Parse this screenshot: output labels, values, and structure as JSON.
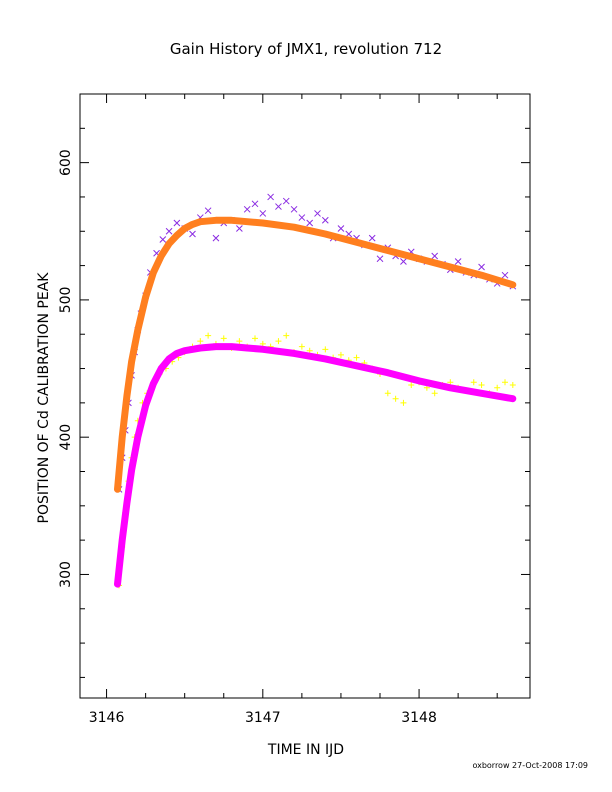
{
  "chart_data": {
    "type": "scatter",
    "title": "Gain History of JMX1, revolution 712",
    "xlabel": "TIME IN IJD",
    "ylabel": "POSITION OF Cd CALIBRATION PEAK",
    "xlim": [
      3145.83,
      3148.71
    ],
    "ylim": [
      210,
      650
    ],
    "x_ticks": [
      3146,
      3147,
      3148
    ],
    "y_ticks": [
      300,
      400,
      500,
      600
    ],
    "x_tick_labels": [
      "3146",
      "3147",
      "3148"
    ],
    "y_tick_labels": [
      "300",
      "400",
      "500",
      "600"
    ],
    "grid": false,
    "legend": "none",
    "series": [
      {
        "marker": "x",
        "color": "#8a2be2",
        "points": [
          [
            3146.08,
            362
          ],
          [
            3146.1,
            385
          ],
          [
            3146.12,
            405
          ],
          [
            3146.14,
            425
          ],
          [
            3146.16,
            445
          ],
          [
            3146.18,
            462
          ],
          [
            3146.2,
            478
          ],
          [
            3146.22,
            490
          ],
          [
            3146.25,
            503
          ],
          [
            3146.28,
            520
          ],
          [
            3146.32,
            534
          ],
          [
            3146.36,
            544
          ],
          [
            3146.4,
            550
          ],
          [
            3146.45,
            556
          ],
          [
            3146.5,
            552
          ],
          [
            3146.55,
            548
          ],
          [
            3146.6,
            560
          ],
          [
            3146.65,
            565
          ],
          [
            3146.7,
            545
          ],
          [
            3146.75,
            556
          ],
          [
            3146.8,
            558
          ],
          [
            3146.85,
            552
          ],
          [
            3146.9,
            566
          ],
          [
            3146.95,
            570
          ],
          [
            3147.0,
            563
          ],
          [
            3147.05,
            575
          ],
          [
            3147.1,
            568
          ],
          [
            3147.15,
            572
          ],
          [
            3147.2,
            566
          ],
          [
            3147.25,
            560
          ],
          [
            3147.3,
            556
          ],
          [
            3147.35,
            563
          ],
          [
            3147.4,
            558
          ],
          [
            3147.45,
            545
          ],
          [
            3147.5,
            552
          ],
          [
            3147.55,
            548
          ],
          [
            3147.6,
            545
          ],
          [
            3147.65,
            540
          ],
          [
            3147.7,
            545
          ],
          [
            3147.75,
            530
          ],
          [
            3147.8,
            538
          ],
          [
            3147.85,
            532
          ],
          [
            3147.9,
            528
          ],
          [
            3147.95,
            535
          ],
          [
            3148.0,
            530
          ],
          [
            3148.05,
            528
          ],
          [
            3148.1,
            532
          ],
          [
            3148.15,
            526
          ],
          [
            3148.2,
            522
          ],
          [
            3148.25,
            528
          ],
          [
            3148.3,
            520
          ],
          [
            3148.35,
            518
          ],
          [
            3148.4,
            524
          ],
          [
            3148.45,
            515
          ],
          [
            3148.5,
            512
          ],
          [
            3148.55,
            518
          ],
          [
            3148.6,
            510
          ]
        ]
      },
      {
        "marker": "+",
        "color": "#ffff00",
        "points": [
          [
            3146.08,
            292
          ],
          [
            3146.1,
            320
          ],
          [
            3146.12,
            345
          ],
          [
            3146.14,
            368
          ],
          [
            3146.16,
            385
          ],
          [
            3146.18,
            400
          ],
          [
            3146.2,
            412
          ],
          [
            3146.23,
            425
          ],
          [
            3146.26,
            432
          ],
          [
            3146.3,
            440
          ],
          [
            3146.34,
            446
          ],
          [
            3146.38,
            450
          ],
          [
            3146.42,
            455
          ],
          [
            3146.46,
            458
          ],
          [
            3146.5,
            462
          ],
          [
            3146.55,
            466
          ],
          [
            3146.6,
            470
          ],
          [
            3146.65,
            474
          ],
          [
            3146.7,
            468
          ],
          [
            3146.75,
            472
          ],
          [
            3146.8,
            465
          ],
          [
            3146.85,
            470
          ],
          [
            3146.9,
            466
          ],
          [
            3146.95,
            472
          ],
          [
            3147.0,
            468
          ],
          [
            3147.05,
            466
          ],
          [
            3147.1,
            470
          ],
          [
            3147.15,
            474
          ],
          [
            3147.2,
            462
          ],
          [
            3147.25,
            466
          ],
          [
            3147.3,
            463
          ],
          [
            3147.35,
            460
          ],
          [
            3147.4,
            464
          ],
          [
            3147.45,
            458
          ],
          [
            3147.5,
            460
          ],
          [
            3147.55,
            456
          ],
          [
            3147.6,
            458
          ],
          [
            3147.65,
            454
          ],
          [
            3147.7,
            450
          ],
          [
            3147.75,
            446
          ],
          [
            3147.8,
            432
          ],
          [
            3147.85,
            428
          ],
          [
            3147.9,
            425
          ],
          [
            3147.95,
            438
          ],
          [
            3148.0,
            440
          ],
          [
            3148.05,
            436
          ],
          [
            3148.1,
            432
          ],
          [
            3148.15,
            438
          ],
          [
            3148.2,
            440
          ],
          [
            3148.25,
            436
          ],
          [
            3148.3,
            434
          ],
          [
            3148.35,
            440
          ],
          [
            3148.4,
            438
          ],
          [
            3148.45,
            432
          ],
          [
            3148.5,
            436
          ],
          [
            3148.55,
            440
          ],
          [
            3148.6,
            438
          ]
        ]
      },
      {
        "marker": "line",
        "color": "#ff7f1f",
        "points": [
          [
            3146.07,
            362
          ],
          [
            3146.1,
            400
          ],
          [
            3146.13,
            430
          ],
          [
            3146.16,
            455
          ],
          [
            3146.2,
            478
          ],
          [
            3146.25,
            502
          ],
          [
            3146.3,
            520
          ],
          [
            3146.35,
            532
          ],
          [
            3146.4,
            541
          ],
          [
            3146.45,
            547
          ],
          [
            3146.5,
            552
          ],
          [
            3146.55,
            555
          ],
          [
            3146.6,
            557
          ],
          [
            3146.7,
            558
          ],
          [
            3146.8,
            558
          ],
          [
            3146.9,
            557
          ],
          [
            3147.0,
            556
          ],
          [
            3147.2,
            553
          ],
          [
            3147.4,
            548
          ],
          [
            3147.6,
            542
          ],
          [
            3147.8,
            536
          ],
          [
            3148.0,
            530
          ],
          [
            3148.2,
            524
          ],
          [
            3148.4,
            518
          ],
          [
            3148.6,
            511
          ]
        ]
      },
      {
        "marker": "line",
        "color": "#ff00ff",
        "points": [
          [
            3146.07,
            293
          ],
          [
            3146.1,
            325
          ],
          [
            3146.13,
            352
          ],
          [
            3146.16,
            376
          ],
          [
            3146.2,
            400
          ],
          [
            3146.25,
            423
          ],
          [
            3146.3,
            439
          ],
          [
            3146.35,
            450
          ],
          [
            3146.4,
            457
          ],
          [
            3146.45,
            461
          ],
          [
            3146.5,
            463
          ],
          [
            3146.6,
            465
          ],
          [
            3146.7,
            466
          ],
          [
            3146.8,
            466
          ],
          [
            3146.9,
            465
          ],
          [
            3147.0,
            464
          ],
          [
            3147.2,
            461
          ],
          [
            3147.4,
            457
          ],
          [
            3147.6,
            452
          ],
          [
            3147.8,
            447
          ],
          [
            3148.0,
            441
          ],
          [
            3148.2,
            436
          ],
          [
            3148.4,
            432
          ],
          [
            3148.6,
            428
          ]
        ]
      }
    ]
  },
  "footer": {
    "credit": "oxborrow 27-Oct-2008 17:09"
  }
}
